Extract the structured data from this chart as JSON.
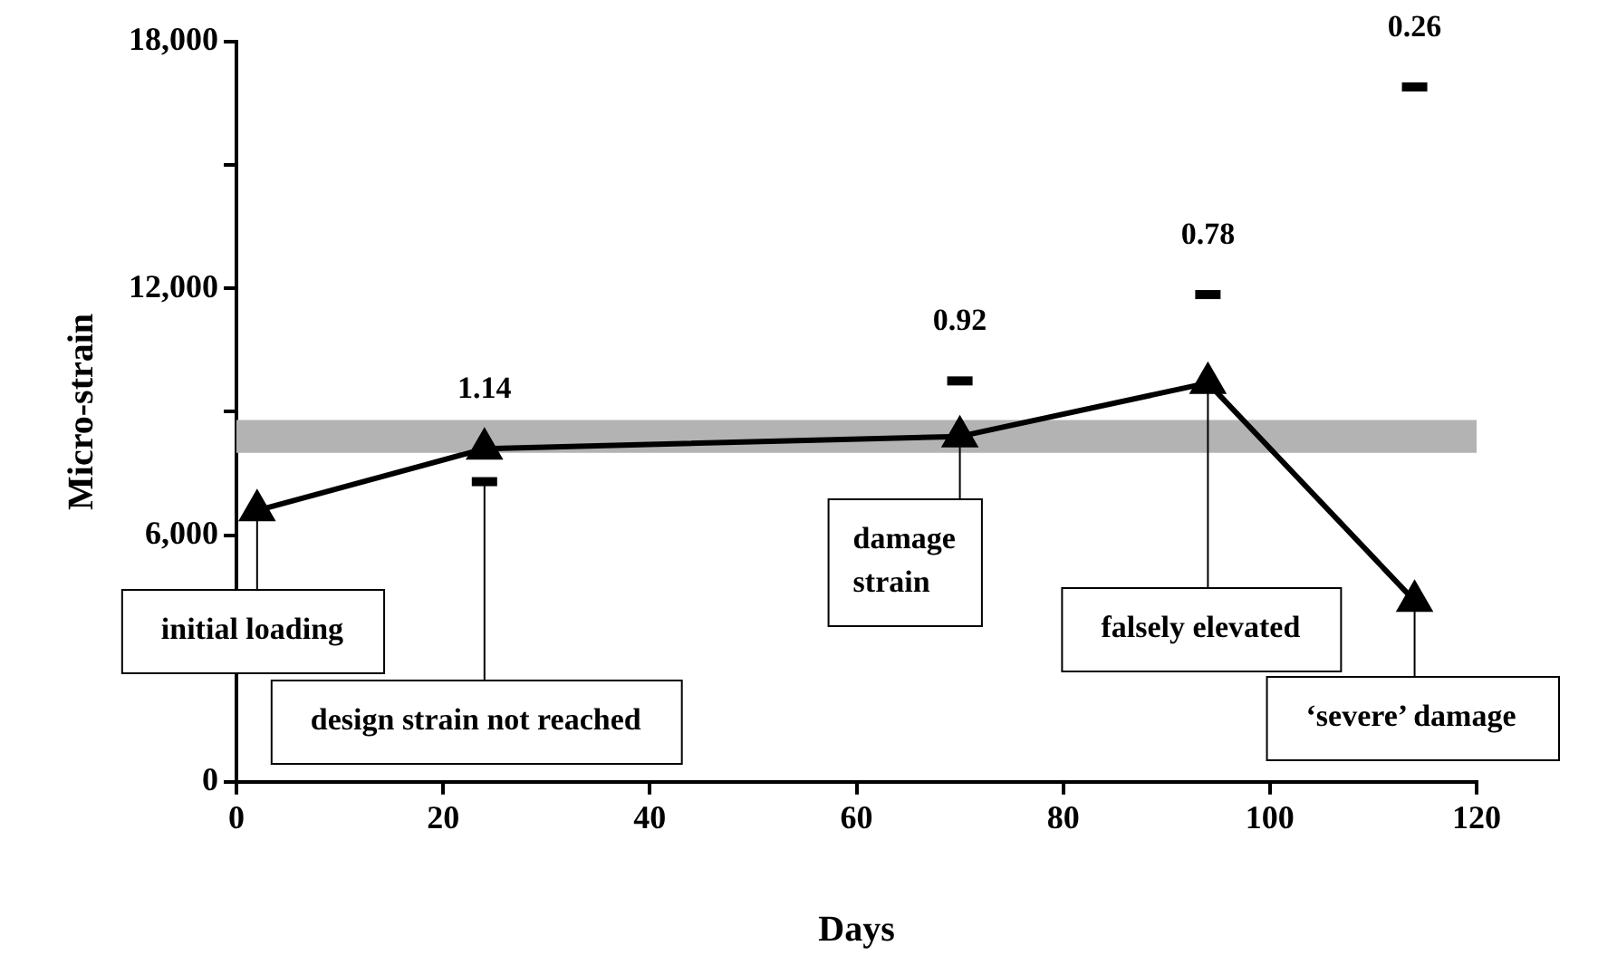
{
  "chart_data": {
    "type": "line",
    "xlabel": "Days",
    "ylabel": "Micro-strain",
    "xlim": [
      0,
      120
    ],
    "xticks": [
      0,
      20,
      40,
      60,
      80,
      100,
      120
    ],
    "ylim": [
      0,
      18000
    ],
    "yticks": [
      0,
      {
        "value": 3000,
        "label": null
      },
      {
        "value": 6000,
        "label": "6,000"
      },
      {
        "value": 9000,
        "label": null
      },
      {
        "value": 12000,
        "label": "12,000"
      },
      {
        "value": 15000,
        "label": null
      },
      {
        "value": 18000,
        "label": "18,000"
      }
    ],
    "grid": false,
    "legend": false,
    "bands": [
      {
        "axis": "y",
        "from": 8000,
        "to": 8800,
        "color": "#b3b3b3"
      }
    ],
    "series": [
      {
        "color": "#000000",
        "marker": "triangle",
        "line_style": "solid",
        "x": [
          2,
          24,
          70,
          94,
          114
        ],
        "values": [
          6600,
          8100,
          8400,
          9700,
          4400
        ]
      },
      {
        "type": "scatter",
        "color": "#000000",
        "x": [
          24,
          70,
          94,
          114
        ],
        "values": [
          7300,
          9750,
          11850,
          16900
        ]
      }
    ],
    "annotations": [
      {
        "text": "1.14",
        "x": 24,
        "y": 7300
      },
      {
        "text": "0.92",
        "x": 70,
        "y": 9750
      },
      {
        "text": "0.78",
        "x": 94,
        "y": 11850
      },
      {
        "text": "0.26",
        "x": 114,
        "y": 16900
      },
      {
        "text": "initial loading",
        "x": 2,
        "y": 6600
      },
      {
        "text": "design strain not reached",
        "x": 24,
        "y": 7300
      },
      {
        "text": "damage strain",
        "x": 70,
        "y": 8400
      },
      {
        "text": "falsely elevated",
        "x": 94,
        "y": 9700
      },
      {
        "text": "‘severe’ damage",
        "x": 114,
        "y": 4400
      }
    ]
  }
}
